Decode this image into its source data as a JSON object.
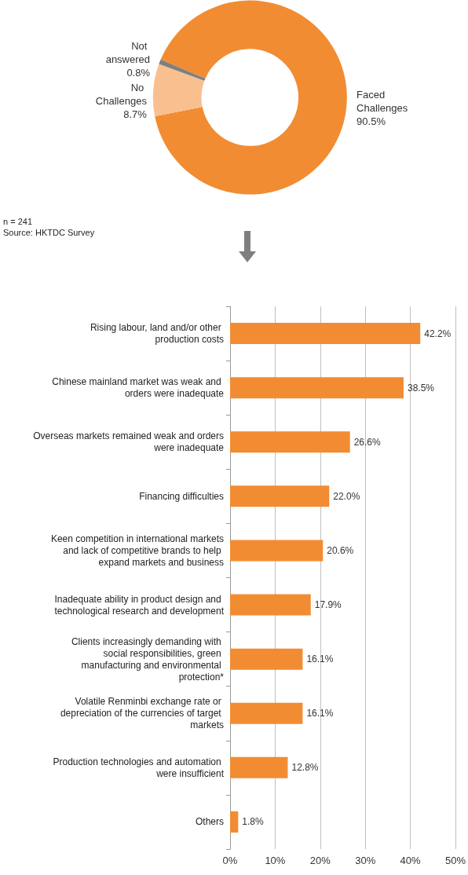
{
  "chart_data": [
    {
      "type": "donut",
      "categories": [
        "Faced Challenges",
        "No Challenges",
        "Not answered"
      ],
      "values": [
        90.5,
        8.7,
        0.8
      ],
      "colors": [
        "#f28c32",
        "#f9c08f",
        "#7f7f7f"
      ],
      "value_labels": [
        "90.5%",
        "8.7%",
        "0.8%"
      ],
      "legend": false,
      "annotations": [
        "n = 241",
        "Source: HKTDC Survey"
      ]
    },
    {
      "type": "bar",
      "orientation": "horizontal",
      "categories": [
        "Rising labour, land and/or other production costs",
        "Chinese mainland market was weak and orders were inadequate",
        "Overseas markets remained weak and orders were inadequate",
        "Financing difficulties",
        "Keen competition in international markets and lack of competitive brands to help expand markets and business",
        "Inadequate ability in product design and technological research and development",
        "Clients increasingly demanding with social responsibilities, green manufacturing and environmental protection*",
        "Volatile Renminbi exchange rate or depreciation of the currencies of target markets",
        "Production technologies and automation were insufficient",
        "Others"
      ],
      "values": [
        42.2,
        38.5,
        26.6,
        22.0,
        20.6,
        17.9,
        16.1,
        16.1,
        12.8,
        1.8
      ],
      "value_labels": [
        "42.2%",
        "38.5%",
        "26.6%",
        "22.0%",
        "20.6%",
        "17.9%",
        "16.1%",
        "16.1%",
        "12.8%",
        "1.8%"
      ],
      "color": "#f28c32",
      "xlim": [
        0,
        50
      ],
      "xticks": [
        {
          "value": 0,
          "label": "0%"
        },
        {
          "value": 10,
          "label": "10%"
        },
        {
          "value": 20,
          "label": "20%"
        },
        {
          "value": 30,
          "label": "30%"
        },
        {
          "value": 40,
          "label": "40%"
        },
        {
          "value": 50,
          "label": "50%"
        }
      ],
      "grid": "x",
      "legend": false
    }
  ]
}
